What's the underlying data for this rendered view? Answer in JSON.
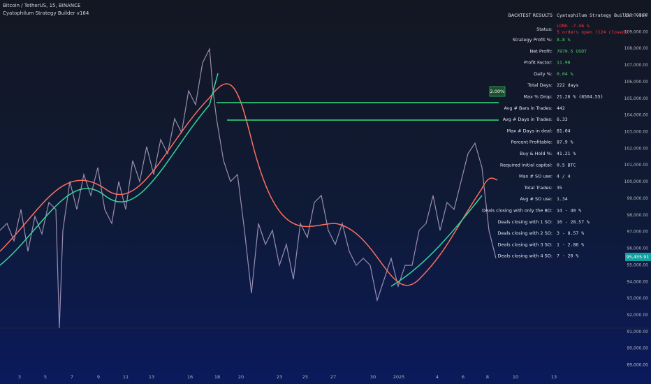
{
  "header": {
    "symbol": "Bitcoin / TetherUS, 15, BINANCE",
    "indicator": "Cyatophilum Strategy Builder v164"
  },
  "results": {
    "title": "BACKTEST RESULTS",
    "subtitle": "Cyatophilum Strategy Builder v164",
    "status_label": "Status:",
    "status_lines": [
      "LONG -7.46 %",
      "5 orders open (124 closed)"
    ],
    "rows": [
      [
        "Strategy Profit %:",
        "8.8 %"
      ],
      [
        "Net Profit:",
        "7879.5 USDT"
      ],
      [
        "Profit Factor:",
        "11.98"
      ],
      [
        "Daily %:",
        "0.04 %"
      ],
      [
        "Total Days:",
        "222 days"
      ],
      [
        "Max % Drop:",
        "21.26 % (8504.55)"
      ],
      [
        "Avg # Bars in Trades:",
        "442"
      ],
      [
        "Avg # Days in Trades:",
        "6.33"
      ],
      [
        "Max # Days in deal:",
        "81.04"
      ],
      [
        "Percent Profitable:",
        "87.9 %"
      ],
      [
        "Buy & Hold %:",
        "41.21 %"
      ],
      [
        "Required Initial capital:",
        "0.5 BTC"
      ],
      [
        "Max # SO use:",
        "4 / 4"
      ],
      [
        "Total Trades:",
        "35"
      ],
      [
        "Avg # SO use:",
        "1.34"
      ],
      [
        "Deals closing with only the BO:",
        "14 - 40 %"
      ],
      [
        "Deals closing with 1 SO:",
        "10 - 28.57 %"
      ],
      [
        "Deals closing with 2 SO:",
        "3 - 8.57 %"
      ],
      [
        "Deals closing with 3 SO:",
        "1 - 2.86 %"
      ],
      [
        "Deals closing with 4 SO:",
        "7 - 20 %"
      ]
    ]
  },
  "price_axis": [
    "110,000.00",
    "109,000.00",
    "108,000.00",
    "107,000.00",
    "106,000.00",
    "105,000.00",
    "104,000.00",
    "103,000.00",
    "102,000.00",
    "101,000.00",
    "100,000.00",
    "99,000.00",
    "98,000.00",
    "97,000.00",
    "96,000.00",
    "95,000.00",
    "94,000.00",
    "93,000.00",
    "92,000.00",
    "91,000.00",
    "90,000.00",
    "89,000.00"
  ],
  "current_price": "95,455.91",
  "target_label": "2.00%",
  "date_axis": [
    "3",
    "5",
    "7",
    "9",
    "11",
    "13",
    "16",
    "18",
    "20",
    "23",
    "25",
    "27",
    "30",
    "2025",
    "4",
    "6",
    "8",
    "10",
    "13"
  ]
}
